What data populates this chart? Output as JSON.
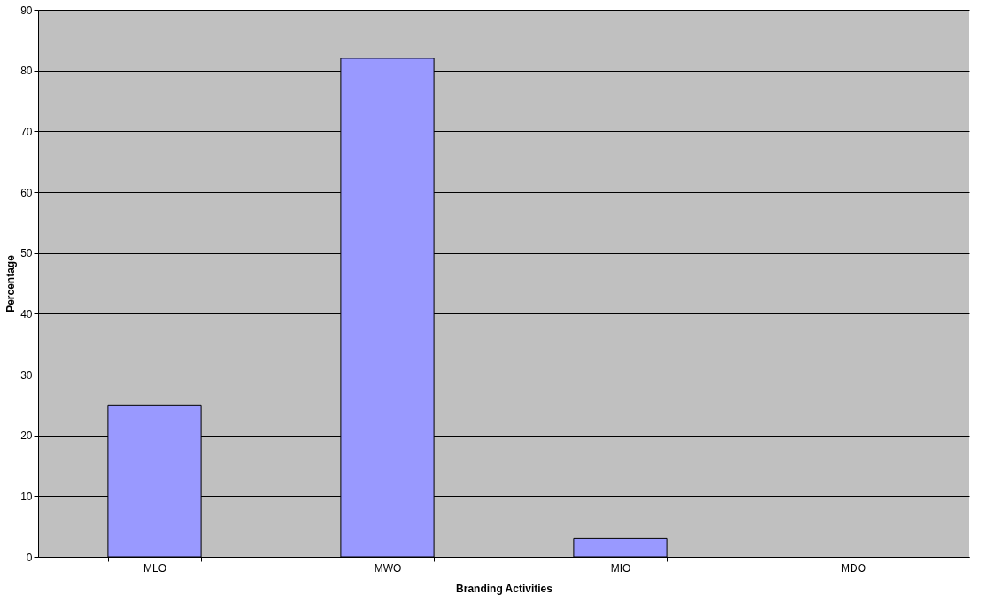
{
  "chart_data": {
    "type": "bar",
    "xlabel": "Branding Activities",
    "ylabel": "Percentage",
    "categories": [
      "MLO",
      "MWO",
      "MIO",
      "MDO"
    ],
    "series": [
      {
        "color": "#9999ff",
        "values": [
          25,
          82,
          3,
          0
        ]
      }
    ],
    "ylim": [
      0,
      90
    ],
    "yticks": [
      0,
      10,
      20,
      30,
      40,
      50,
      60,
      70,
      80,
      90
    ],
    "grid": "y"
  }
}
